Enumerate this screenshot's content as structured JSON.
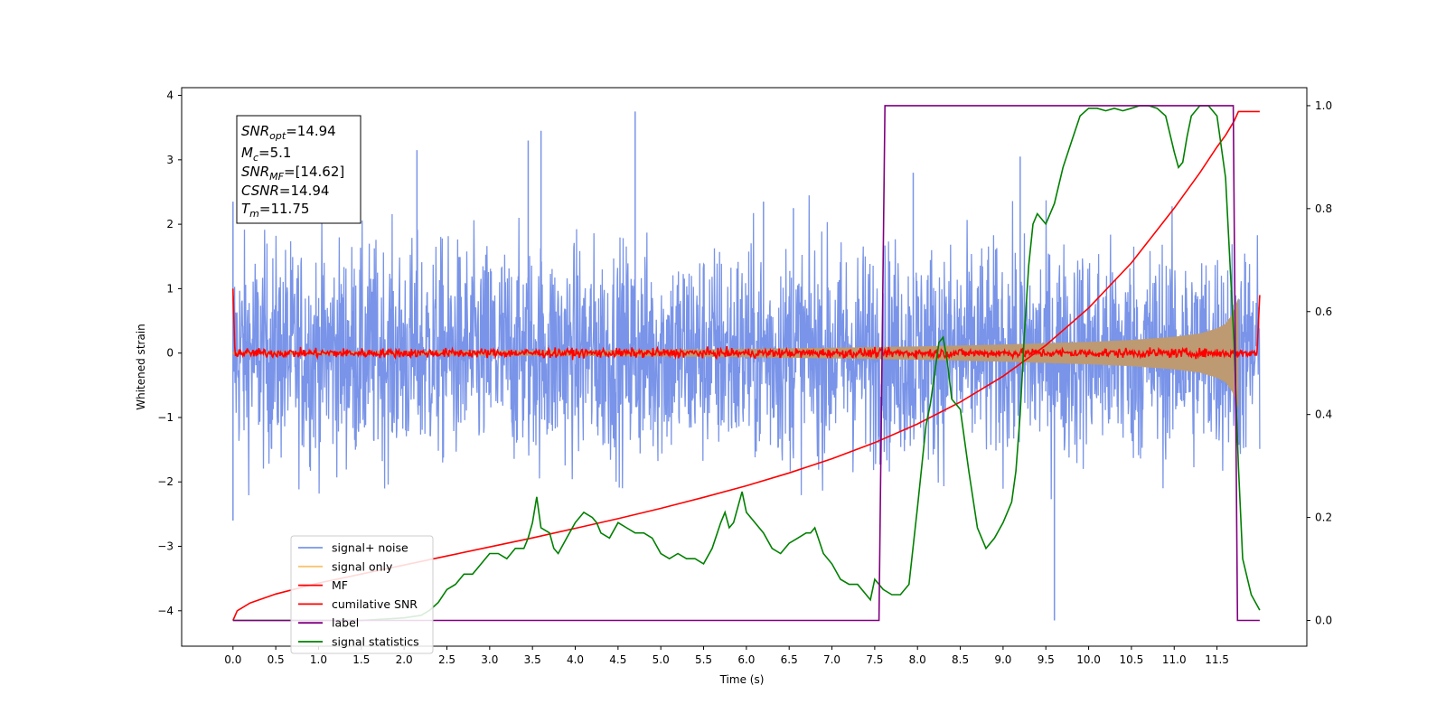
{
  "chart_data": {
    "type": "line",
    "xlabel": "Time (s)",
    "ylabel_left": "Whitened strain",
    "xlim": [
      -0.6,
      12.55
    ],
    "ylim_left": [
      -4.55,
      4.12
    ],
    "ylim_right": [
      -0.05,
      1.035
    ],
    "x_ticks": [
      0.0,
      0.5,
      1.0,
      1.5,
      2.0,
      2.5,
      3.0,
      3.5,
      4.0,
      4.5,
      5.0,
      5.5,
      6.0,
      6.5,
      7.0,
      7.5,
      8.0,
      8.5,
      9.0,
      9.5,
      10.0,
      10.5,
      11.0,
      11.5
    ],
    "x_tick_labels": [
      "0.0",
      "0.5",
      "1.0",
      "1.5",
      "2.0",
      "2.5",
      "3.0",
      "3.5",
      "4.0",
      "4.5",
      "5.0",
      "5.5",
      "6.0",
      "6.5",
      "7.0",
      "7.5",
      "8.0",
      "8.5",
      "9.0",
      "9.5",
      "10.0",
      "10.5",
      "11.0",
      "11.5"
    ],
    "y_ticks_left": [
      4,
      3,
      2,
      1,
      0,
      -1,
      -2,
      -3,
      -4
    ],
    "y_tick_labels_left": [
      "4",
      "3",
      "2",
      "1",
      "0",
      "−1",
      "−2",
      "−3",
      "−4"
    ],
    "y_ticks_right": [
      1.0,
      0.8,
      0.6,
      0.4,
      0.2,
      0.0
    ],
    "y_tick_labels_right": [
      "1.0",
      "0.8",
      "0.6",
      "0.4",
      "0.2",
      "0.0"
    ],
    "grid": false,
    "legend_position": "lower-left",
    "series": [
      {
        "name": "signal+ noise",
        "color": "#7994e8",
        "axis": "left",
        "x_range": [
          0.0,
          12.0
        ],
        "envelope_typical": [
          -1.8,
          1.8
        ],
        "min": -4.2,
        "max": 3.75,
        "spikes": [
          [
            0.0,
            2.35
          ],
          [
            0.0,
            -2.6
          ],
          [
            2.15,
            3.15
          ],
          [
            3.45,
            3.3
          ],
          [
            3.6,
            3.45
          ],
          [
            4.7,
            3.75
          ],
          [
            9.6,
            -4.15
          ],
          [
            9.2,
            3.05
          ],
          [
            7.95,
            2.8
          ],
          [
            6.55,
            2.25
          ],
          [
            6.2,
            2.35
          ]
        ]
      },
      {
        "name": "signal only",
        "color": "#f8c471",
        "axis": "left",
        "x": [
          0.0,
          1.0,
          2.0,
          3.0,
          4.0,
          5.0,
          6.0,
          7.0,
          8.0,
          9.0,
          10.0,
          10.5,
          11.0,
          11.3,
          11.5,
          11.6,
          11.68,
          11.75
        ],
        "amplitude": [
          0.02,
          0.025,
          0.03,
          0.035,
          0.04,
          0.05,
          0.06,
          0.08,
          0.1,
          0.13,
          0.17,
          0.2,
          0.25,
          0.3,
          0.38,
          0.45,
          0.6,
          0.85
        ]
      },
      {
        "name": "MF",
        "color": "#ff0000",
        "axis": "left",
        "start_value": 1.0,
        "end_value": 0.9,
        "baseline": 0.0,
        "noise_amplitude": 0.08
      },
      {
        "name": "cumilative SNR",
        "color": "#ff0000",
        "axis": "left",
        "x": [
          0.0,
          0.05,
          0.2,
          0.5,
          1.0,
          1.5,
          2.0,
          2.5,
          3.0,
          3.5,
          4.0,
          4.5,
          5.0,
          5.5,
          6.0,
          6.5,
          7.0,
          7.5,
          8.0,
          8.5,
          9.0,
          9.5,
          10.0,
          10.5,
          11.0,
          11.3,
          11.5,
          11.6,
          11.7,
          11.75,
          12.0
        ],
        "y": [
          -4.15,
          -4.0,
          -3.88,
          -3.74,
          -3.57,
          -3.43,
          -3.29,
          -3.15,
          -3.01,
          -2.87,
          -2.72,
          -2.57,
          -2.41,
          -2.24,
          -2.06,
          -1.86,
          -1.64,
          -1.39,
          -1.1,
          -0.76,
          -0.36,
          0.12,
          0.7,
          1.4,
          2.25,
          2.8,
          3.2,
          3.38,
          3.6,
          3.75,
          3.75
        ]
      },
      {
        "name": "label",
        "color": "#800080",
        "axis": "right",
        "x": [
          0.0,
          7.55,
          7.62,
          11.69,
          11.74,
          12.0
        ],
        "y": [
          0.0,
          0.0,
          1.0,
          1.0,
          0.0,
          0.0
        ]
      },
      {
        "name": "signal statistics",
        "color": "#008000",
        "axis": "right",
        "x": [
          0.0,
          0.5,
          1.0,
          1.5,
          2.0,
          2.2,
          2.3,
          2.4,
          2.5,
          2.6,
          2.7,
          2.8,
          2.9,
          3.0,
          3.1,
          3.2,
          3.3,
          3.4,
          3.45,
          3.5,
          3.55,
          3.6,
          3.7,
          3.75,
          3.8,
          3.9,
          4.0,
          4.1,
          4.2,
          4.25,
          4.3,
          4.4,
          4.5,
          4.6,
          4.7,
          4.8,
          4.9,
          5.0,
          5.1,
          5.2,
          5.3,
          5.4,
          5.5,
          5.6,
          5.7,
          5.75,
          5.8,
          5.85,
          5.9,
          5.95,
          6.0,
          6.1,
          6.2,
          6.3,
          6.4,
          6.5,
          6.6,
          6.7,
          6.75,
          6.8,
          6.9,
          7.0,
          7.1,
          7.2,
          7.3,
          7.4,
          7.45,
          7.5,
          7.6,
          7.7,
          7.8,
          7.9,
          8.0,
          8.1,
          8.15,
          8.2,
          8.25,
          8.3,
          8.35,
          8.4,
          8.5,
          8.6,
          8.7,
          8.8,
          8.9,
          9.0,
          9.1,
          9.15,
          9.2,
          9.25,
          9.3,
          9.35,
          9.4,
          9.45,
          9.5,
          9.6,
          9.7,
          9.8,
          9.9,
          10.0,
          10.1,
          10.2,
          10.3,
          10.4,
          10.5,
          10.6,
          10.7,
          10.8,
          10.9,
          11.0,
          11.05,
          11.1,
          11.15,
          11.2,
          11.3,
          11.4,
          11.5,
          11.6,
          11.7,
          11.75,
          11.8,
          11.9,
          12.0
        ],
        "y": [
          0.0,
          0.0,
          0.0,
          0.0,
          0.005,
          0.01,
          0.02,
          0.035,
          0.06,
          0.07,
          0.09,
          0.09,
          0.11,
          0.13,
          0.13,
          0.12,
          0.14,
          0.14,
          0.16,
          0.19,
          0.24,
          0.18,
          0.17,
          0.14,
          0.13,
          0.16,
          0.19,
          0.21,
          0.2,
          0.19,
          0.17,
          0.16,
          0.19,
          0.18,
          0.17,
          0.17,
          0.16,
          0.13,
          0.12,
          0.13,
          0.12,
          0.12,
          0.11,
          0.14,
          0.19,
          0.21,
          0.18,
          0.19,
          0.22,
          0.25,
          0.21,
          0.19,
          0.17,
          0.14,
          0.13,
          0.15,
          0.16,
          0.17,
          0.17,
          0.18,
          0.13,
          0.11,
          0.08,
          0.07,
          0.07,
          0.05,
          0.04,
          0.08,
          0.06,
          0.05,
          0.05,
          0.07,
          0.22,
          0.38,
          0.42,
          0.48,
          0.54,
          0.55,
          0.5,
          0.43,
          0.41,
          0.29,
          0.18,
          0.14,
          0.16,
          0.19,
          0.23,
          0.29,
          0.4,
          0.56,
          0.69,
          0.77,
          0.79,
          0.78,
          0.77,
          0.81,
          0.88,
          0.93,
          0.98,
          0.995,
          0.995,
          0.99,
          0.995,
          0.99,
          0.995,
          1.0,
          1.0,
          0.995,
          0.98,
          0.91,
          0.88,
          0.89,
          0.94,
          0.98,
          1.0,
          1.0,
          0.98,
          0.86,
          0.54,
          0.3,
          0.12,
          0.05,
          0.02
        ]
      }
    ],
    "legend": [
      "signal+ noise",
      "signal only",
      "MF",
      "cumilative SNR",
      "label",
      "signal statistics"
    ]
  },
  "annotation": {
    "snr_opt_main": "SNR",
    "snr_opt_sub": "opt",
    "snr_opt_val": "=14.94",
    "mc_main": "M",
    "mc_sub": "c",
    "mc_val": "=5.1",
    "snr_mf_main": "SNR",
    "snr_mf_sub": "MF",
    "snr_mf_val": "=[14.62]",
    "csnr_main": "CSNR",
    "csnr_val": "=14.94",
    "tm_main": "T",
    "tm_sub": "m",
    "tm_val": "=11.75"
  }
}
